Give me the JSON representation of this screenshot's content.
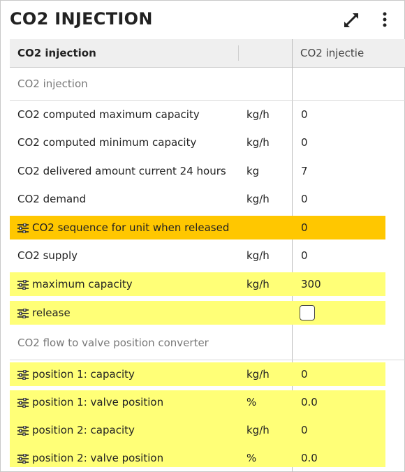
{
  "panel": {
    "title": "CO2 INJECTION"
  },
  "table": {
    "col1_header": "CO2 injection",
    "col2_header": "CO2 injectie"
  },
  "section1": {
    "title": "CO2 injection",
    "rows": [
      {
        "label": "CO2 computed maximum capacity",
        "unit": "kg/h",
        "value": "0"
      },
      {
        "label": "CO2 computed minimum capacity",
        "unit": "kg/h",
        "value": "0"
      },
      {
        "label": "CO2 delivered amount current 24 hours",
        "unit": "kg",
        "value": "7"
      },
      {
        "label": "CO2 demand",
        "unit": "kg/h",
        "value": "0"
      },
      {
        "label": "CO2 sequence for unit when released",
        "unit": "",
        "value": "0"
      },
      {
        "label": "CO2 supply",
        "unit": "kg/h",
        "value": "0"
      },
      {
        "label": "maximum capacity",
        "unit": "kg/h",
        "value": "300"
      },
      {
        "label": "release",
        "unit": "",
        "value": ""
      }
    ]
  },
  "section2": {
    "title": "CO2 flow to valve position converter",
    "rows": [
      {
        "label": "position 1: capacity",
        "unit": "kg/h",
        "value": "0"
      },
      {
        "label": "position 1: valve position",
        "unit": "%",
        "value": "0.0"
      },
      {
        "label": "position 2: capacity",
        "unit": "kg/h",
        "value": "0"
      },
      {
        "label": "position 2: valve position",
        "unit": "%",
        "value": "0.0"
      }
    ]
  },
  "colors": {
    "highlight_yellow": "#ffff77",
    "highlight_orange": "#ffc700"
  },
  "icons": {
    "expand": "expand-icon",
    "more": "more-vert-icon",
    "setting": "sliders-icon"
  }
}
